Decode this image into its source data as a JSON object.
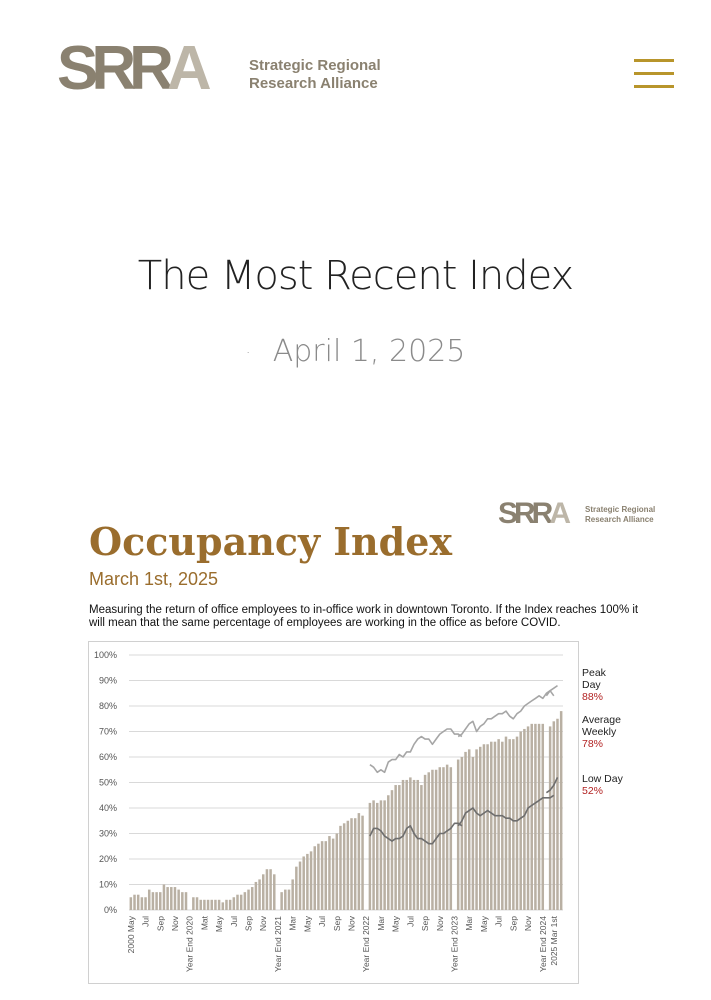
{
  "header": {
    "logo_mark_dark": "SRR",
    "logo_mark_light": "A",
    "logo_line1": "Strategic Regional",
    "logo_line2": "Research Alliance",
    "menu_icon": "hamburger-menu-icon"
  },
  "main": {
    "title": "The Most Recent Index",
    "date_bullet": "·",
    "date": "April 1, 2025"
  },
  "report": {
    "mini_logo_dark": "SRR",
    "mini_logo_light": "A",
    "mini_logo_line1": "Strategic Regional",
    "mini_logo_line2": "Research Alliance",
    "title": "Occupancy Index",
    "subtitle": "March 1st, 2025",
    "description": "Measuring the return of office employees to in-office work in downtown Toronto. If the Index reaches 100% it will mean that the same percentage of employees are working in the office as before COVID."
  },
  "colors": {
    "brand_dark": "#8a8170",
    "brand_light": "#bdb6a8",
    "accent_gold": "#b8952b",
    "title_brown": "#9a6d2d",
    "bar": "#b9b0a3",
    "peak_line": "#a6a6a6",
    "low_line": "#6e6e6e",
    "legend_value": "#b22222"
  },
  "chart_data": {
    "type": "bar",
    "title": "",
    "xlabel": "",
    "ylabel": "",
    "ylim": [
      0,
      100
    ],
    "ytick_labels": [
      "0%",
      "10%",
      "20%",
      "30%",
      "40%",
      "50%",
      "60%",
      "70%",
      "80%",
      "90%",
      "100%"
    ],
    "grid": true,
    "legend_placement": "right",
    "x_tick_labels": [
      {
        "index": 0,
        "label": "2000 May"
      },
      {
        "index": 4,
        "label": "Jul"
      },
      {
        "index": 8,
        "label": "Sep"
      },
      {
        "index": 12,
        "label": "Nov"
      },
      {
        "index": 16,
        "label": "Year End 2020"
      },
      {
        "index": 20,
        "label": "Mat"
      },
      {
        "index": 24,
        "label": "May"
      },
      {
        "index": 28,
        "label": "Jul"
      },
      {
        "index": 32,
        "label": "Sep"
      },
      {
        "index": 36,
        "label": "Nov"
      },
      {
        "index": 40,
        "label": "Year End 2021"
      },
      {
        "index": 44,
        "label": "Mar"
      },
      {
        "index": 48,
        "label": "May"
      },
      {
        "index": 52,
        "label": "Jul"
      },
      {
        "index": 56,
        "label": "Sep"
      },
      {
        "index": 60,
        "label": "Nov"
      },
      {
        "index": 64,
        "label": "Year End 2022"
      },
      {
        "index": 68,
        "label": "Mar"
      },
      {
        "index": 72,
        "label": "May"
      },
      {
        "index": 76,
        "label": "Jul"
      },
      {
        "index": 80,
        "label": "Sep"
      },
      {
        "index": 84,
        "label": "Nov"
      },
      {
        "index": 88,
        "label": "Year End 2023"
      },
      {
        "index": 92,
        "label": "Mar"
      },
      {
        "index": 96,
        "label": "May"
      },
      {
        "index": 100,
        "label": "Jul"
      },
      {
        "index": 104,
        "label": "Sep"
      },
      {
        "index": 108,
        "label": "Nov"
      },
      {
        "index": 112,
        "label": "Year End 2024"
      },
      {
        "index": 115,
        "label": "2025 Mar 1st"
      }
    ],
    "series": [
      {
        "name": "Average Weekly",
        "type": "bar",
        "values": [
          5,
          6,
          6,
          5,
          5,
          8,
          7,
          7,
          7,
          10,
          9,
          9,
          9,
          8,
          7,
          7,
          0,
          5,
          5,
          4,
          4,
          4,
          4,
          4,
          4,
          3,
          4,
          4,
          5,
          6,
          6,
          7,
          8,
          9,
          11,
          12,
          14,
          16,
          16,
          14,
          0,
          7,
          8,
          8,
          12,
          17,
          19,
          21,
          22,
          23,
          25,
          26,
          27,
          27,
          29,
          28,
          30,
          33,
          34,
          35,
          36,
          36,
          38,
          37,
          0,
          42,
          43,
          42,
          43,
          43,
          45,
          47,
          49,
          49,
          51,
          51,
          52,
          51,
          51,
          49,
          53,
          54,
          55,
          55,
          56,
          56,
          57,
          56,
          0,
          59,
          60,
          62,
          63,
          60,
          63,
          64,
          65,
          65,
          66,
          66,
          67,
          66,
          68,
          67,
          67,
          68,
          70,
          71,
          72,
          73,
          73,
          73,
          73,
          0,
          72,
          74,
          75,
          78
        ],
        "legend_label": "Average Weekly",
        "legend_value": "78%"
      },
      {
        "name": "Peak Day",
        "type": "line",
        "segments": [
          {
            "start_index": 65,
            "values": [
              57,
              56,
              54,
              55,
              54,
              58,
              59,
              59,
              61,
              60,
              62,
              62,
              65,
              67,
              68,
              67,
              67,
              65,
              67,
              69,
              70,
              71,
              71,
              69,
              69,
              68
            ]
          },
          {
            "start_index": 89,
            "values": [
              68,
              69,
              71,
              73,
              74,
              70,
              72,
              73,
              75,
              75,
              76,
              77,
              77,
              78,
              76,
              75,
              77,
              78,
              80,
              81,
              82,
              83,
              84,
              83,
              85,
              86,
              84
            ]
          },
          {
            "start_index": 113,
            "values": [
              84,
              86,
              87,
              88
            ]
          }
        ],
        "legend_label": "Peak Day",
        "legend_value": "88%"
      },
      {
        "name": "Low Day",
        "type": "line",
        "segments": [
          {
            "start_index": 65,
            "values": [
              29,
              32,
              32,
              31,
              29,
              28,
              27,
              28,
              28,
              29,
              32,
              33,
              30,
              28,
              28,
              27,
              26,
              26,
              28,
              30,
              30,
              31,
              32,
              34,
              34,
              33
            ]
          },
          {
            "start_index": 89,
            "values": [
              33,
              35,
              38,
              39,
              40,
              38,
              37,
              38,
              39,
              38,
              37,
              37,
              37,
              36,
              36,
              35,
              35,
              36,
              37,
              40,
              41,
              42,
              43,
              44,
              44,
              44,
              45
            ]
          },
          {
            "start_index": 113,
            "values": [
              46,
              47,
              49,
              52
            ]
          }
        ],
        "legend_label": "Low Day",
        "legend_value": "52%"
      }
    ],
    "legend": [
      {
        "label_lines": [
          "Peak",
          "Day"
        ],
        "value": "88%"
      },
      {
        "label_lines": [
          "Average",
          "Weekly"
        ],
        "value": "78%"
      },
      {
        "label_lines": [
          "Low Day"
        ],
        "value": "52%"
      }
    ]
  }
}
